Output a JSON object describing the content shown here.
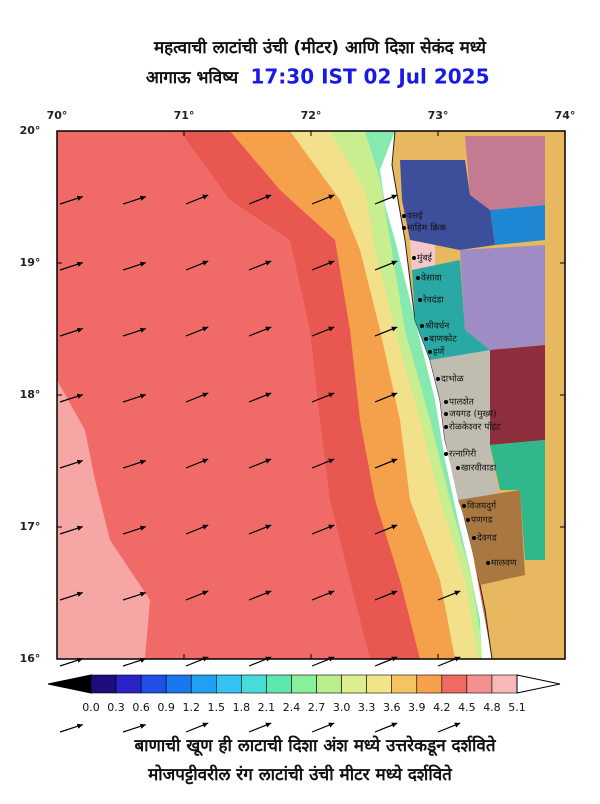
{
  "header": {
    "title": "महत्वाची लाटांची उंची (मीटर) आणि दिशा सेकंद मध्ये",
    "subtitle": "आगाऊ भविष्य",
    "time": "17:30 IST 02 Jul 2025"
  },
  "map": {
    "lon_labels": [
      "70°",
      "71°",
      "72°",
      "73°",
      "74°"
    ],
    "lat_labels": [
      "20°",
      "19°",
      "18°",
      "17°",
      "16°"
    ],
    "places": [
      "वसई",
      "माहिम क्रिक",
      "मुंबई",
      "वेसावा",
      "रेवदंडा",
      "श्रीवर्धन",
      "बाणकोट",
      "हर्णे",
      "दाभोळ",
      "पालशेत",
      "जयगड (मुख्य)",
      "रोळकेश्वर पॉइंट",
      "रत्नागिरी",
      "खारवीवाडा",
      "विजयदुर्ग",
      "पणगड",
      "देवगड",
      "मालवण"
    ]
  },
  "colorbar": {
    "labels": [
      "0.0",
      "0.3",
      "0.6",
      "0.9",
      "1.2",
      "1.5",
      "1.8",
      "2.1",
      "2.4",
      "2.7",
      "3.0",
      "3.3",
      "3.6",
      "3.9",
      "4.2",
      "4.5",
      "4.8",
      "5.1"
    ],
    "colors": [
      "#1c0c7c",
      "#2a24c8",
      "#1f4fe6",
      "#1a78ee",
      "#20a0f2",
      "#34c2f2",
      "#48dcd8",
      "#5ee8b0",
      "#88f09a",
      "#b8ee8c",
      "#dcee8e",
      "#f2e488",
      "#f5c462",
      "#f5a04a",
      "#ef6a62",
      "#f59090",
      "#f7b8b8"
    ],
    "under": "#000000",
    "over": "#ffffff"
  },
  "footer": {
    "line1": "बाणाची खूण ही लाटाची दिशा अंश मध्ये उत्तरेकडून दर्शविते",
    "line2": "मोजपट्टीवरील रंग लाटांची उंची मीटर मध्ये दर्शविते"
  }
}
